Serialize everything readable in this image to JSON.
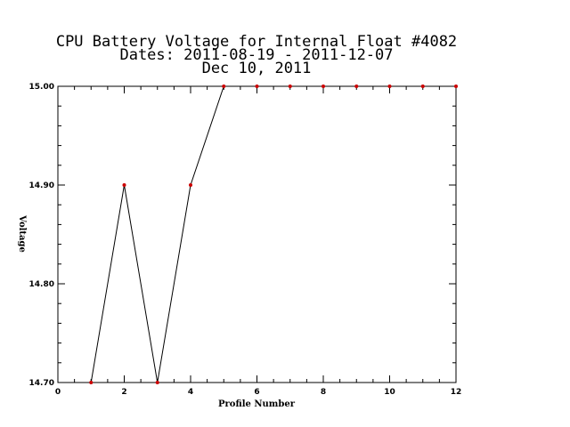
{
  "chart_data": {
    "type": "line",
    "title_lines": [
      "CPU Battery Voltage for Internal Float #4082",
      "Dates:  2011-08-19 -  2011-12-07",
      "Dec 10, 2011"
    ],
    "xlabel": "Profile Number",
    "ylabel": "Voltage",
    "xlim": [
      0,
      12
    ],
    "ylim": [
      14.7,
      15.0
    ],
    "x_ticks": [
      0,
      2,
      4,
      6,
      8,
      10,
      12
    ],
    "x_tick_labels": [
      "0",
      "2",
      "4",
      "6",
      "8",
      "10",
      "12"
    ],
    "y_ticks": [
      14.7,
      14.8,
      14.9,
      15.0
    ],
    "y_tick_labels": [
      "14.70",
      "14.80",
      "14.90",
      "15.00"
    ],
    "grid": false,
    "series": [
      {
        "x": [
          1,
          2,
          3,
          4,
          5,
          6,
          7,
          8,
          9,
          10,
          11,
          12
        ],
        "y": [
          14.7,
          14.9,
          14.7,
          14.9,
          15.0,
          15.0,
          15.0,
          15.0,
          15.0,
          15.0,
          15.0,
          15.0
        ],
        "line_color": "#000000",
        "marker_color": "#cc0000"
      }
    ]
  }
}
